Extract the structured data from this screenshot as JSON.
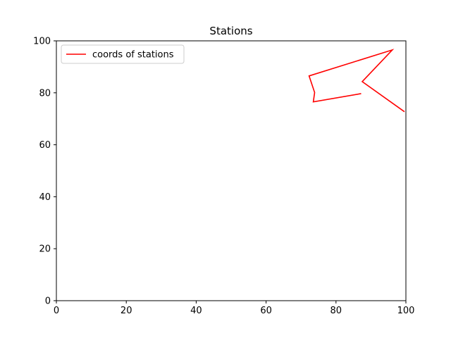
{
  "chart_data": {
    "type": "line",
    "title": "Stations",
    "xlabel": "",
    "ylabel": "",
    "xlim": [
      0,
      100
    ],
    "ylim": [
      0,
      100
    ],
    "x_ticks": [
      0,
      20,
      40,
      60,
      80,
      100
    ],
    "y_ticks": [
      0,
      20,
      40,
      60,
      80,
      100
    ],
    "x_tick_labels": [
      "0",
      "20",
      "40",
      "60",
      "80",
      "100"
    ],
    "y_tick_labels": [
      "0",
      "20",
      "40",
      "60",
      "80",
      "100"
    ],
    "grid": false,
    "legend_position": "top-left",
    "series": [
      {
        "name": "coords of stations",
        "color": "#ff0000",
        "x": [
          87.2,
          73.5,
          73.9,
          72.3,
          96.1,
          87.5,
          99.6
        ],
        "y": [
          79.7,
          76.5,
          80.1,
          86.5,
          96.5,
          84.3,
          72.7
        ]
      }
    ]
  }
}
